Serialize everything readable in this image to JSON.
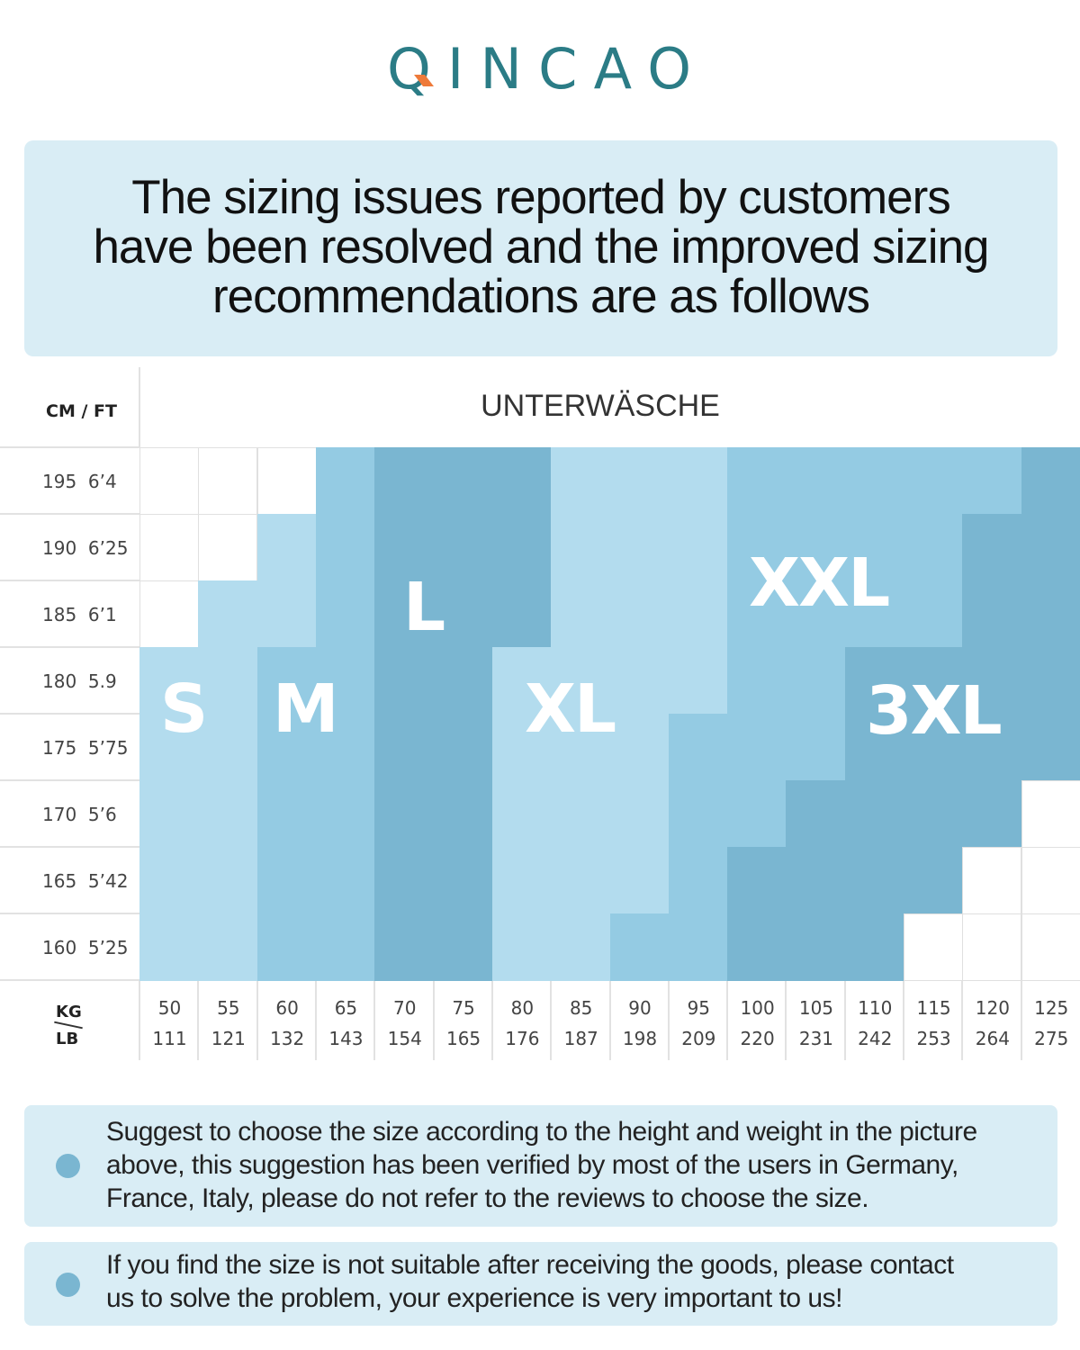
{
  "brand": {
    "logo_text": "QINCAO",
    "logo_color": "#2b7c86",
    "accent_color": "#ee7a3a"
  },
  "headline": {
    "lines": [
      "The sizing issues reported by customers",
      "have been resolved and the improved sizing",
      "recommendations are as follows"
    ]
  },
  "chart_data": {
    "type": "heatmap",
    "title": "UNTERWÄSCHE",
    "row_header": "CM / FT",
    "col_header_top": "KG",
    "col_header_bottom": "LB",
    "rows": [
      {
        "cm": "195",
        "ft": "6’4"
      },
      {
        "cm": "190",
        "ft": "6’25"
      },
      {
        "cm": "185",
        "ft": "6’1"
      },
      {
        "cm": "180",
        "ft": "5.9"
      },
      {
        "cm": "175",
        "ft": "5’75"
      },
      {
        "cm": "170",
        "ft": "5’6"
      },
      {
        "cm": "165",
        "ft": "5’42"
      },
      {
        "cm": "160",
        "ft": "5’25"
      }
    ],
    "columns": [
      {
        "kg": "50",
        "lb": "111"
      },
      {
        "kg": "55",
        "lb": "121"
      },
      {
        "kg": "60",
        "lb": "132"
      },
      {
        "kg": "65",
        "lb": "143"
      },
      {
        "kg": "70",
        "lb": "154"
      },
      {
        "kg": "75",
        "lb": "165"
      },
      {
        "kg": "80",
        "lb": "176"
      },
      {
        "kg": "85",
        "lb": "187"
      },
      {
        "kg": "90",
        "lb": "198"
      },
      {
        "kg": "95",
        "lb": "209"
      },
      {
        "kg": "100",
        "lb": "220"
      },
      {
        "kg": "105",
        "lb": "231"
      },
      {
        "kg": "110",
        "lb": "242"
      },
      {
        "kg": "115",
        "lb": "253"
      },
      {
        "kg": "120",
        "lb": "264"
      },
      {
        "kg": "125",
        "lb": "275"
      }
    ],
    "sizes": [
      "S",
      "M",
      "L",
      "XL",
      "XXL",
      "3XL"
    ],
    "size_colors": {
      "S": "#b3dcee",
      "M": "#94cbe3",
      "L": "#7ab6d1",
      "XL": "#b3dcee",
      "XXL": "#94cbe3",
      "3XL": "#7ab6d1"
    },
    "grid": [
      [
        "",
        "",
        "",
        "M",
        "L",
        "L",
        "L",
        "XL",
        "XL",
        "XL",
        "XXL",
        "XXL",
        "XXL",
        "XXL",
        "XXL",
        "3XL"
      ],
      [
        "",
        "",
        "S",
        "M",
        "L",
        "L",
        "L",
        "XL",
        "XL",
        "XL",
        "XXL",
        "XXL",
        "XXL",
        "XXL",
        "3XL",
        "3XL"
      ],
      [
        "",
        "S",
        "S",
        "M",
        "L",
        "L",
        "L",
        "XL",
        "XL",
        "XL",
        "XXL",
        "XXL",
        "XXL",
        "XXL",
        "3XL",
        "3XL"
      ],
      [
        "S",
        "S",
        "M",
        "M",
        "L",
        "L",
        "XL",
        "XL",
        "XL",
        "XL",
        "XXL",
        "XXL",
        "3XL",
        "3XL",
        "3XL",
        "3XL"
      ],
      [
        "S",
        "S",
        "M",
        "M",
        "L",
        "L",
        "XL",
        "XL",
        "XL",
        "XXL",
        "XXL",
        "XXL",
        "3XL",
        "3XL",
        "3XL",
        "3XL"
      ],
      [
        "S",
        "S",
        "M",
        "M",
        "L",
        "L",
        "XL",
        "XL",
        "XL",
        "XXL",
        "XXL",
        "3XL",
        "3XL",
        "3XL",
        "3XL",
        ""
      ],
      [
        "S",
        "S",
        "M",
        "M",
        "L",
        "L",
        "XL",
        "XL",
        "XL",
        "XXL",
        "3XL",
        "3XL",
        "3XL",
        "3XL",
        "",
        ""
      ],
      [
        "S",
        "S",
        "M",
        "M",
        "L",
        "L",
        "XL",
        "XL",
        "XXL",
        "XXL",
        "3XL",
        "3XL",
        "3XL",
        "",
        "",
        ""
      ]
    ]
  },
  "notes": [
    {
      "icon": "bullet-dot-icon",
      "lines": [
        "Suggest to choose the size according to the height and weight in the picture",
        "above, this suggestion has been verified by most of the users in Germany,",
        "France, Italy, please do not refer to the reviews to choose the size."
      ]
    },
    {
      "icon": "bullet-dot-icon",
      "lines": [
        "If you find the size is not suitable after receiving the goods, please contact",
        "us to solve the problem, your experience is very important to us!"
      ]
    }
  ]
}
